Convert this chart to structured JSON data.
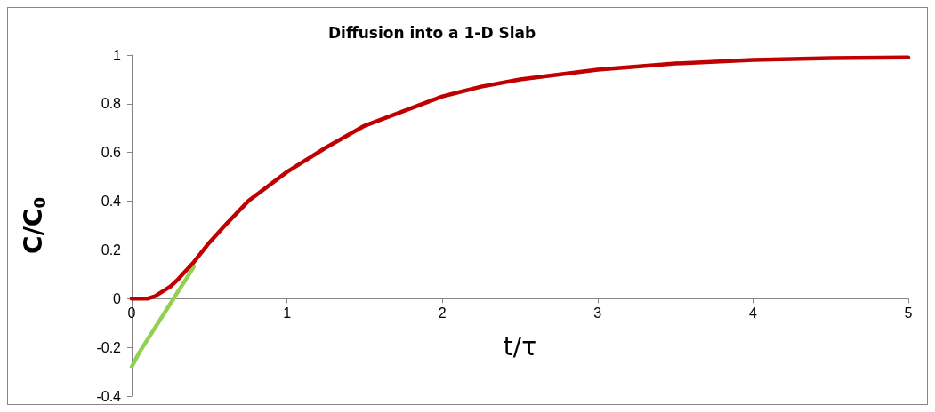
{
  "chart_data": {
    "type": "line",
    "title": "Diffusion into a 1-D Slab",
    "xlabel": "t/τ",
    "ylabel": "C/C$_{0}$",
    "xlim": [
      0,
      5
    ],
    "xticks": [
      0,
      1,
      2,
      3,
      4,
      5
    ],
    "ylim": [
      -0.4,
      1
    ],
    "yticks": [
      -0.4,
      -0.2,
      0,
      0.2,
      0.4,
      0.6,
      0.8,
      1
    ],
    "marker": "none",
    "line_style": "solid",
    "series": [
      {
        "color": "#92d050",
        "x": [
          0,
          0.05,
          0.1,
          0.15,
          0.2,
          0.25,
          0.3,
          0.35,
          0.4
        ],
        "values": [
          -0.28,
          -0.22,
          -0.17,
          -0.12,
          -0.07,
          -0.02,
          0.03,
          0.08,
          0.13
        ]
      },
      {
        "color": "#c00000",
        "x": [
          0,
          0.1,
          0.15,
          0.2,
          0.25,
          0.3,
          0.4,
          0.5,
          0.6,
          0.75,
          1,
          1.25,
          1.5,
          1.75,
          2,
          2.25,
          2.5,
          3,
          3.5,
          4,
          4.5,
          5
        ],
        "values": [
          0,
          0,
          0.01,
          0.03,
          0.05,
          0.08,
          0.15,
          0.23,
          0.3,
          0.4,
          0.52,
          0.62,
          0.71,
          0.77,
          0.83,
          0.87,
          0.9,
          0.94,
          0.965,
          0.98,
          0.987,
          0.99
        ]
      }
    ]
  }
}
